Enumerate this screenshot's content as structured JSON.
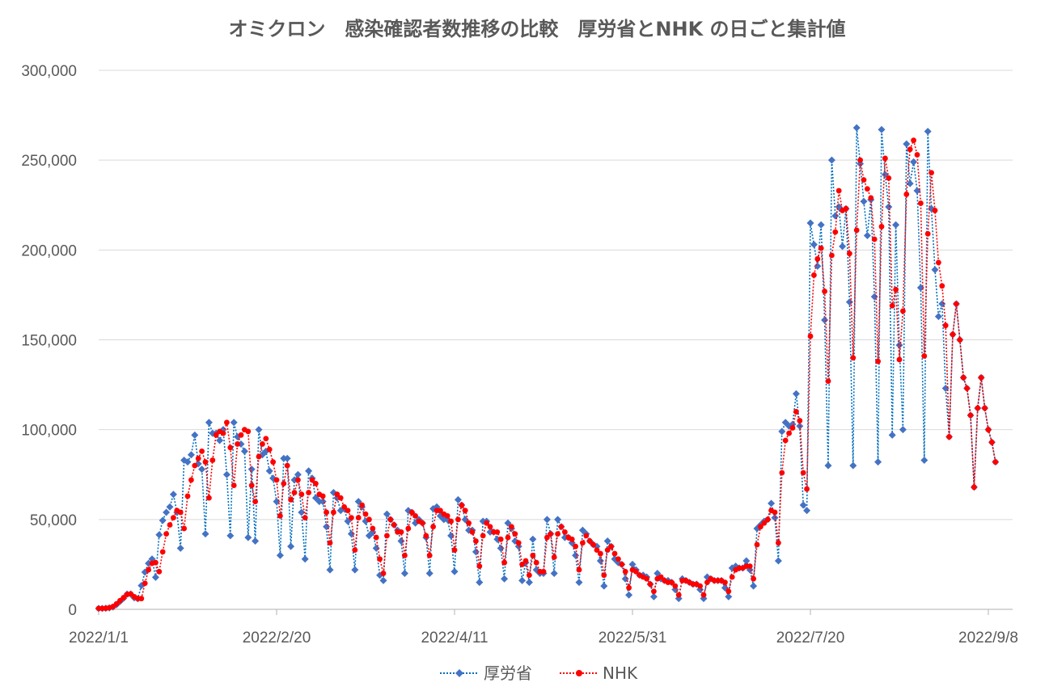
{
  "chart_data": {
    "type": "line",
    "title": "オミクロン　感染確認者数推移の比較　厚労省とNHK の日ごと集計値",
    "xlabel": "",
    "ylabel": "",
    "x_start_date": "2022/1/1",
    "x_step": "1 day",
    "ylim": [
      0,
      300000
    ],
    "grid": true,
    "legend_position": "bottom",
    "y_ticks": [
      {
        "value": 0,
        "label": "0"
      },
      {
        "value": 50000,
        "label": "50,000"
      },
      {
        "value": 100000,
        "label": "100,000"
      },
      {
        "value": 150000,
        "label": "150,000"
      },
      {
        "value": 200000,
        "label": "200,000"
      },
      {
        "value": 250000,
        "label": "250,000"
      },
      {
        "value": 300000,
        "label": "300,000"
      }
    ],
    "x_ticks": [
      {
        "day": 0,
        "label": "2022/1/1"
      },
      {
        "day": 50,
        "label": "2022/2/20"
      },
      {
        "day": 100,
        "label": "2022/4/11"
      },
      {
        "day": 150,
        "label": "2022/5/31"
      },
      {
        "day": 200,
        "label": "2022/7/20"
      },
      {
        "day": 250,
        "label": "2022/9/8"
      }
    ],
    "series": [
      {
        "name": "厚労省",
        "color": "#4472c4",
        "line_color": "#0070c0",
        "marker": "diamond",
        "values": [
          500,
          500,
          600,
          800,
          1300,
          2600,
          4400,
          6200,
          8500,
          8500,
          6400,
          5900,
          13200,
          20700,
          25600,
          28000,
          17800,
          41500,
          49500,
          54000,
          57000,
          64000,
          54000,
          34000,
          83000,
          82000,
          86000,
          97000,
          81000,
          78000,
          42000,
          104000,
          98000,
          98000,
          94000,
          100000,
          75000,
          41000,
          104000,
          96000,
          92000,
          88000,
          40000,
          78000,
          38000,
          100000,
          86000,
          88000,
          77000,
          73000,
          60000,
          30000,
          84000,
          84000,
          35000,
          72000,
          75000,
          54000,
          28000,
          77000,
          73000,
          62000,
          60000,
          60000,
          46000,
          22000,
          65000,
          62000,
          55000,
          56000,
          49000,
          42000,
          22000,
          60000,
          57000,
          49000,
          41000,
          43000,
          34000,
          19000,
          16000,
          53000,
          50000,
          47000,
          44000,
          38000,
          20000,
          55000,
          54000,
          48000,
          50000,
          48000,
          40000,
          20000,
          56000,
          57000,
          52000,
          50000,
          50000,
          41000,
          21000,
          61000,
          58000,
          50000,
          44000,
          44000,
          32000,
          15000,
          49000,
          49000,
          43000,
          43000,
          39000,
          34000,
          17000,
          48000,
          45000,
          38000,
          35000,
          16000,
          26000,
          15000,
          39000,
          22000,
          20000,
          20000,
          50000,
          42000,
          20000,
          50000,
          46000,
          40000,
          40000,
          37000,
          30000,
          15000,
          44000,
          42000,
          38000,
          36000,
          35000,
          27000,
          13000,
          38000,
          35000,
          28000,
          26000,
          25000,
          17000,
          8000,
          25000,
          22000,
          19000,
          19000,
          18000,
          14000,
          7000,
          20000,
          17000,
          16000,
          16000,
          15000,
          11000,
          6000,
          17000,
          16000,
          15000,
          14000,
          14000,
          11000,
          6000,
          18000,
          17000,
          16000,
          16000,
          16000,
          12000,
          7000,
          23000,
          24000,
          23000,
          23000,
          27000,
          22000,
          13000,
          45000,
          47000,
          49000,
          50000,
          59000,
          51000,
          27000,
          99000,
          104000,
          102000,
          103000,
          120000,
          102000,
          58000,
          55000,
          215000,
          203000,
          191000,
          214000,
          161000,
          80000,
          250000,
          219000,
          224000,
          202000,
          223000,
          171000,
          80000,
          268000,
          248000,
          227000,
          208000,
          228000,
          174000,
          82000,
          267000,
          242000,
          224000,
          97000,
          214000,
          147000,
          100000,
          259000,
          237000,
          249000,
          233000,
          179000,
          83000,
          266000,
          223000,
          189000,
          163000,
          170000,
          123000,
          96000,
          153000,
          170000,
          150000,
          129000,
          123000,
          108000,
          68000,
          112000,
          129000,
          112000,
          100000,
          93000,
          82000
        ]
      },
      {
        "name": "NHK",
        "color": "#ff0000",
        "line_color": "#ff0000",
        "marker": "circle",
        "values": [
          500,
          500,
          600,
          900,
          1500,
          3000,
          4800,
          6500,
          8300,
          8600,
          7000,
          6000,
          6000,
          14500,
          22000,
          25600,
          26000,
          21000,
          32000,
          42000,
          47000,
          51000,
          55000,
          54000,
          45000,
          63000,
          72000,
          80000,
          84000,
          88000,
          82000,
          62000,
          83000,
          97000,
          99000,
          98000,
          104000,
          90000,
          69000,
          92000,
          97000,
          100000,
          99000,
          69000,
          60000,
          85000,
          92000,
          95000,
          89000,
          82000,
          72000,
          52000,
          70000,
          80000,
          61000,
          65000,
          72000,
          64000,
          51000,
          65000,
          72000,
          70000,
          64000,
          63000,
          54000,
          37000,
          54000,
          64000,
          62000,
          57000,
          55000,
          51000,
          33000,
          51000,
          58000,
          53000,
          50000,
          45000,
          40000,
          28000,
          20000,
          41000,
          50000,
          47000,
          43000,
          43000,
          30000,
          45000,
          54000,
          52000,
          49000,
          48000,
          41000,
          30000,
          46000,
          55000,
          55000,
          53000,
          52000,
          49000,
          33000,
          50000,
          58000,
          55000,
          48000,
          43000,
          38000,
          24000,
          41000,
          48000,
          46000,
          43000,
          43000,
          39000,
          26000,
          40000,
          46000,
          42000,
          37000,
          25000,
          27000,
          19000,
          30000,
          26000,
          21000,
          21000,
          40000,
          42000,
          29000,
          42000,
          46000,
          43000,
          40000,
          39000,
          35000,
          22000,
          37000,
          41000,
          38000,
          36000,
          33000,
          31000,
          19000,
          33000,
          35000,
          31000,
          28000,
          25000,
          21000,
          12000,
          22000,
          21000,
          19000,
          18000,
          17000,
          14000,
          10000,
          17000,
          18000,
          16000,
          15000,
          15000,
          13000,
          8000,
          16000,
          16000,
          15000,
          14000,
          14000,
          13000,
          8000,
          15000,
          17000,
          16000,
          16000,
          16000,
          15000,
          10000,
          18000,
          22000,
          23000,
          23000,
          24000,
          24000,
          17000,
          36000,
          46000,
          48000,
          50000,
          55000,
          54000,
          37000,
          76000,
          94000,
          98000,
          101000,
          110000,
          105000,
          76000,
          67000,
          152000,
          186000,
          195000,
          201000,
          177000,
          127000,
          197000,
          210000,
          233000,
          222000,
          223000,
          198000,
          140000,
          211000,
          250000,
          239000,
          234000,
          229000,
          206000,
          138000,
          213000,
          251000,
          240000,
          169000,
          178000,
          139000,
          166000,
          231000,
          256000,
          261000,
          253000,
          226000,
          141000,
          209000,
          243000,
          222000,
          193000,
          180000,
          158000,
          96000,
          153000,
          170000,
          150000,
          129000,
          123000,
          108000,
          68000,
          112000,
          129000,
          112000,
          100000,
          93000,
          82000
        ]
      }
    ]
  }
}
